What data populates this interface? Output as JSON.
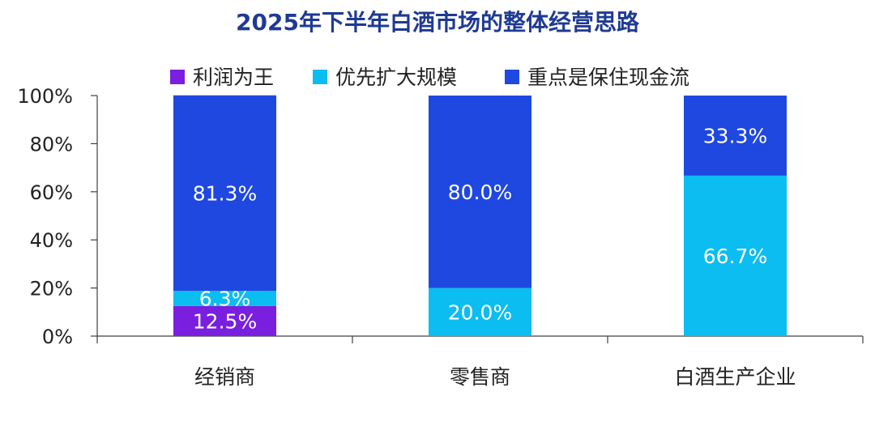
{
  "chart_data": {
    "type": "bar",
    "stacked": true,
    "title": "2025年下半年白酒市场的整体经营思路",
    "categories": [
      "经销商",
      "零售商",
      "白酒生产企业"
    ],
    "y_ticks": [
      "100%",
      "80%",
      "60%",
      "40%",
      "20%",
      "0%"
    ],
    "ylim": [
      0,
      100
    ],
    "legend_position": "top",
    "series": [
      {
        "name": "利润为王",
        "color": "#7a1fe0",
        "values": [
          12.5,
          0,
          0
        ],
        "labels": [
          "12.5%",
          "",
          ""
        ]
      },
      {
        "name": "优先扩大规模",
        "color": "#0bbdf0",
        "values": [
          6.3,
          20.0,
          66.7
        ],
        "labels": [
          "6.3%",
          "20.0%",
          "66.7%"
        ]
      },
      {
        "name": "重点是保住现金流",
        "color": "#1f48e0",
        "values": [
          81.3,
          80.0,
          33.3
        ],
        "labels": [
          "81.3%",
          "80.0%",
          "33.3%"
        ]
      }
    ]
  }
}
